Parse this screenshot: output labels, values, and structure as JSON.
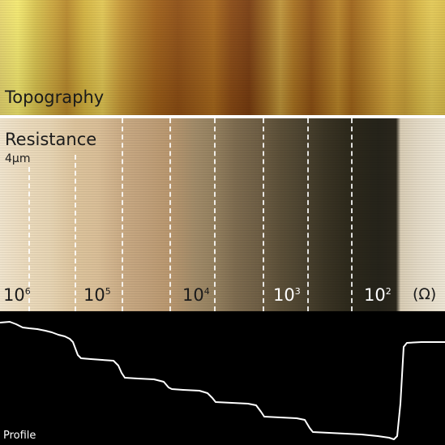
{
  "panels": {
    "topography": {
      "label": "Topography"
    },
    "resistance": {
      "label": "Resistance",
      "scale": "4µm",
      "unit": "(Ω)",
      "ticks": [
        {
          "base": "10",
          "exp": "6"
        },
        {
          "base": "10",
          "exp": "5"
        },
        {
          "base": "10",
          "exp": "4"
        },
        {
          "base": "10",
          "exp": "3"
        },
        {
          "base": "10",
          "exp": "2"
        }
      ]
    },
    "profile": {
      "label": "Profile"
    }
  },
  "colors": {
    "topography_light": "#f4e96f",
    "topography_dark": "#7a3d10",
    "resistance_light": "#efe3cc",
    "resistance_dark": "#25231a",
    "profile_line": "#ffffff",
    "profile_background": "#000000"
  }
}
